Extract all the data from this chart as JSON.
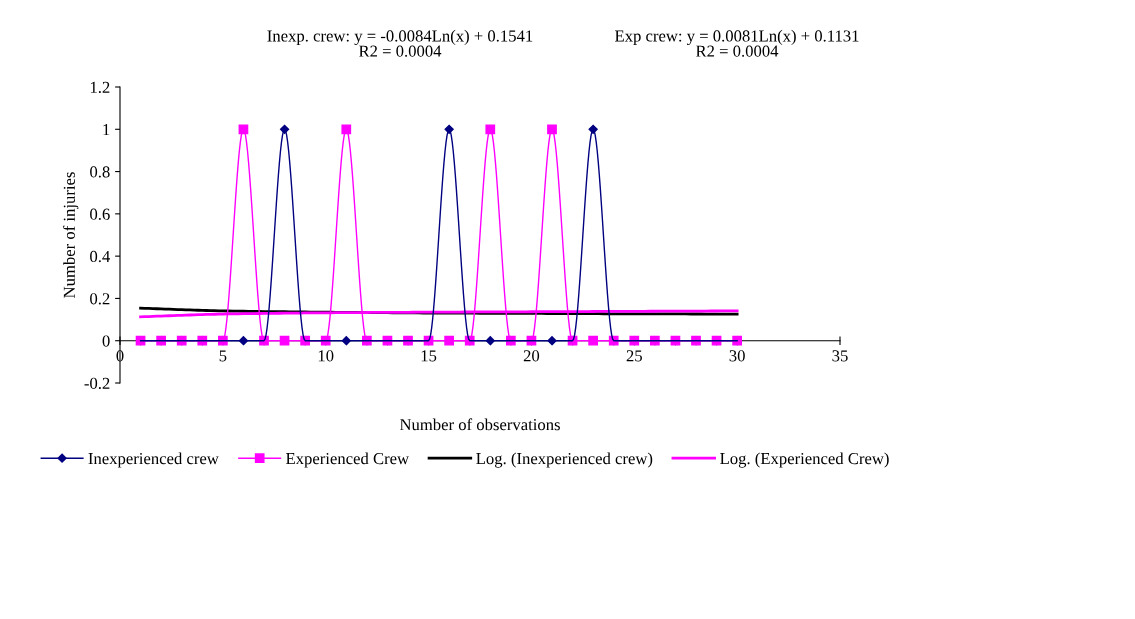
{
  "chart_data": {
    "type": "line",
    "xlabel": "Number of observations",
    "ylabel": "Number of injuries",
    "x": [
      1,
      2,
      3,
      4,
      5,
      6,
      7,
      8,
      9,
      10,
      11,
      12,
      13,
      14,
      15,
      16,
      17,
      18,
      19,
      20,
      21,
      22,
      23,
      24,
      25,
      26,
      27,
      28,
      29,
      30
    ],
    "series": [
      {
        "name": "Inexperienced crew",
        "color": "#000080",
        "marker": "diamond",
        "values": [
          0,
          0,
          0,
          0,
          0,
          0,
          0,
          1,
          0,
          0,
          0,
          0,
          0,
          0,
          0,
          1,
          0,
          0,
          0,
          0,
          0,
          0,
          1,
          0,
          0,
          0,
          0,
          0,
          0,
          0
        ]
      },
      {
        "name": "Experienced Crew",
        "color": "#ff00ff",
        "marker": "square",
        "values": [
          0,
          0,
          0,
          0,
          0,
          1,
          0,
          0,
          0,
          0,
          1,
          0,
          0,
          0,
          0,
          0,
          0,
          1,
          0,
          0,
          1,
          0,
          0,
          0,
          0,
          0,
          0,
          0,
          0,
          0
        ]
      },
      {
        "name": "Log. (Inexperienced crew)",
        "color": "#000000",
        "marker": "none",
        "x": [
          1,
          5,
          10,
          15,
          20,
          25,
          30
        ],
        "values": [
          0.154,
          0.141,
          0.135,
          0.131,
          0.129,
          0.127,
          0.126
        ]
      },
      {
        "name": "Log. (Experienced Crew)",
        "color": "#ff00ff",
        "marker": "none",
        "x": [
          1,
          5,
          10,
          15,
          20,
          25,
          30
        ],
        "values": [
          0.113,
          0.126,
          0.132,
          0.135,
          0.137,
          0.139,
          0.141
        ]
      }
    ],
    "xlim": [
      0,
      35
    ],
    "xticks": [
      0,
      5,
      10,
      15,
      20,
      25,
      30,
      35
    ],
    "ylim": [
      -0.2,
      1.2
    ],
    "yticks": [
      -0.2,
      0,
      0.2,
      0.4,
      0.6,
      0.8,
      1,
      1.2
    ],
    "grid": false,
    "legend": "bottom",
    "line_style": "solid",
    "annotations": [
      "Inexp. crew: y = -0.0084Ln(x) + 0.1541\nR2 = 0.0004",
      "Exp crew: y = 0.0081Ln(x) + 0.1131\nR2 = 0.0004"
    ]
  }
}
